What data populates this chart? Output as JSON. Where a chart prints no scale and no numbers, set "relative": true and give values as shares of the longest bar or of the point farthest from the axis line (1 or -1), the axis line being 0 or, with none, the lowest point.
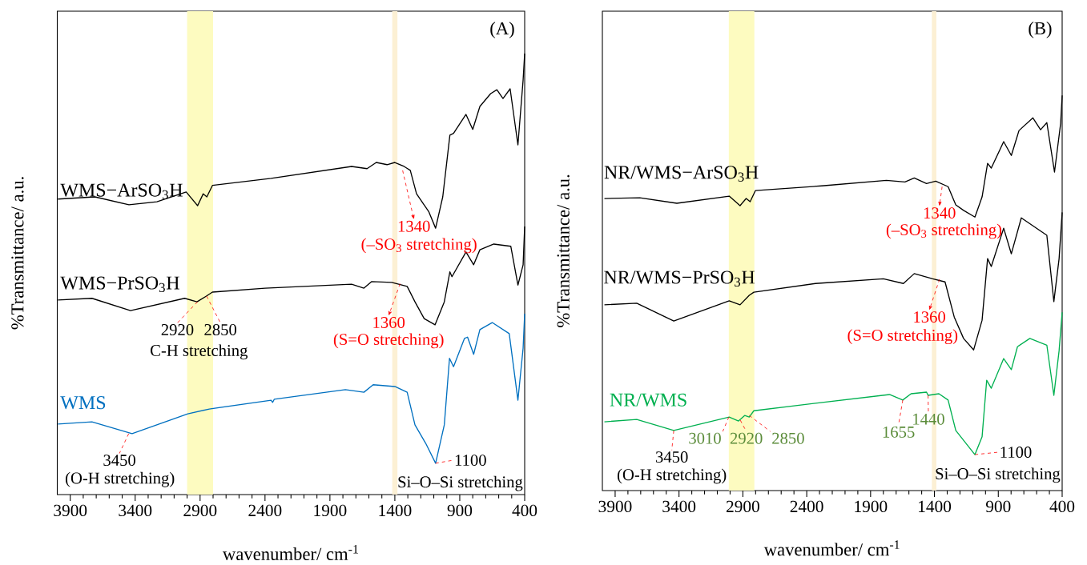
{
  "chart_data": [
    {
      "type": "line",
      "title": "(A)",
      "xlabel": "wavenumber/ cm$^{-1}$",
      "ylabel": "%Transmittance/ a.u.",
      "relative": true,
      "xlim": [
        4000,
        400
      ],
      "xticks": [
        3900,
        3400,
        2900,
        2400,
        1900,
        1400,
        900,
        400
      ],
      "series": [
        {
          "name": "WMS−ArSO$_{3}$H",
          "color": "#000000",
          "x": [
            3995,
            3710,
            3448,
            3233,
            3007,
            2919,
            2876,
            2848,
            2805,
            2353,
            1733,
            1614,
            1543,
            1460,
            1400,
            1329,
            1281,
            1233,
            1138,
            1086,
            1031,
            976,
            948,
            852,
            800,
            745,
            662,
            614,
            567,
            512,
            452,
            412,
            400
          ],
          "values": [
            0.67,
            0.675,
            0.657,
            0.664,
            0.686,
            0.655,
            0.682,
            0.675,
            0.701,
            0.717,
            0.744,
            0.739,
            0.753,
            0.748,
            0.753,
            0.744,
            0.735,
            0.682,
            0.641,
            0.604,
            0.675,
            0.815,
            0.819,
            0.862,
            0.828,
            0.88,
            0.909,
            0.918,
            0.898,
            0.92,
            0.793,
            0.94,
            1.0
          ]
        },
        {
          "name": "WMS−PrSO$_{3}$H",
          "color": "#000000",
          "x": [
            3995,
            3733,
            3436,
            3019,
            2924,
            2852,
            2805,
            2400,
            1733,
            1638,
            1578,
            1424,
            1305,
            1245,
            1174,
            1090,
            1019,
            976,
            960,
            852,
            793,
            745,
            638,
            507,
            452,
            412,
            400
          ],
          "values": [
            0.441,
            0.445,
            0.417,
            0.445,
            0.437,
            0.45,
            0.459,
            0.468,
            0.477,
            0.468,
            0.483,
            0.481,
            0.472,
            0.437,
            0.399,
            0.385,
            0.437,
            0.505,
            0.494,
            0.55,
            0.521,
            0.555,
            0.568,
            0.563,
            0.475,
            0.521,
            0.608
          ]
        },
        {
          "name": "WMS",
          "color": "#0070c0",
          "x": [
            3995,
            3733,
            3424,
            2995,
            2829,
            2353,
            2341,
            2329,
            1781,
            1638,
            1567,
            1400,
            1305,
            1245,
            1162,
            1086,
            1019,
            979,
            948,
            864,
            840,
            793,
            745,
            650,
            519,
            452,
            412,
            400
          ],
          "values": [
            0.16,
            0.165,
            0.138,
            0.183,
            0.194,
            0.214,
            0.209,
            0.216,
            0.238,
            0.232,
            0.249,
            0.245,
            0.232,
            0.158,
            0.116,
            0.071,
            0.158,
            0.309,
            0.29,
            0.354,
            0.357,
            0.318,
            0.374,
            0.39,
            0.365,
            0.214,
            0.332,
            0.41
          ]
        }
      ],
      "bands": [
        {
          "axis": "x",
          "from": 3000,
          "to": 2800,
          "color": "#fdfbc0"
        },
        {
          "axis": "x",
          "from": 1420,
          "to": 1380,
          "color": "#fcf0d4"
        }
      ],
      "annotations": [
        {
          "text": "1340",
          "x": 1340,
          "y": 0.735
        },
        "(–SO$_{3}$ stretching)",
        {
          "text": "1360",
          "x": 1360,
          "y": 0.478
        },
        "(S=O stretching)",
        {
          "text": "2920",
          "x": 2920,
          "y": 0.437
        },
        {
          "text": "2850",
          "x": 2850,
          "y": 0.45
        },
        "C-H stretching",
        {
          "text": "3450",
          "x": 3450,
          "y": 0.138
        },
        "(O-H stretching)",
        {
          "text": "1100",
          "x": 1086,
          "y": 0.071
        },
        "Si–O–Si stretching"
      ]
    },
    {
      "type": "line",
      "title": "(B)",
      "xlabel": "wavenumber/ cm$^{-1}$",
      "ylabel": "%Transmittance/ a.u.",
      "relative": true,
      "xlim": [
        4000,
        400
      ],
      "xticks": [
        3900,
        3400,
        2900,
        2400,
        1900,
        1400,
        900,
        400
      ],
      "series": [
        {
          "name": "NR/WMS−ArSO$_{3}$H",
          "color": "#000000",
          "x": [
            3984,
            3707,
            3417,
            3007,
            2922,
            2874,
            2843,
            2802,
            2283,
            1776,
            1631,
            1558,
            1462,
            1390,
            1293,
            1233,
            1172,
            1083,
            1027,
            984,
            955,
            858,
            798,
            738,
            629,
            569,
            520,
            460,
            412,
            400
          ],
          "values": [
            0.739,
            0.741,
            0.727,
            0.745,
            0.721,
            0.739,
            0.731,
            0.759,
            0.771,
            0.785,
            0.781,
            0.791,
            0.777,
            0.783,
            0.769,
            0.723,
            0.709,
            0.692,
            0.743,
            0.828,
            0.816,
            0.883,
            0.848,
            0.911,
            0.943,
            0.913,
            0.931,
            0.806,
            0.929,
            1.0
          ]
        },
        {
          "name": "NR/WMS−PrSO$_{3}$H",
          "color": "#000000",
          "x": [
            3984,
            3731,
            3441,
            3007,
            2922,
            2850,
            2814,
            2331,
            1800,
            1643,
            1558,
            1414,
            1317,
            1245,
            1172,
            1093,
            1027,
            984,
            955,
            858,
            798,
            720,
            520,
            465,
            424,
            400
          ],
          "values": [
            0.47,
            0.474,
            0.429,
            0.48,
            0.47,
            0.494,
            0.502,
            0.524,
            0.536,
            0.524,
            0.549,
            0.536,
            0.528,
            0.439,
            0.385,
            0.356,
            0.431,
            0.587,
            0.567,
            0.664,
            0.599,
            0.69,
            0.646,
            0.478,
            0.587,
            0.704
          ]
        },
        {
          "name": "NR/WMS",
          "color": "#00b050",
          "x": [
            3984,
            3731,
            3441,
            3007,
            2934,
            2886,
            2850,
            2814,
            2331,
            1752,
            1648,
            1583,
            1462,
            1450,
            1365,
            1293,
            1233,
            1083,
            1027,
            991,
            955,
            858,
            798,
            750,
            653,
            520,
            465,
            424,
            400
          ],
          "values": [
            0.174,
            0.18,
            0.152,
            0.186,
            0.176,
            0.19,
            0.186,
            0.202,
            0.221,
            0.243,
            0.229,
            0.245,
            0.249,
            0.241,
            0.245,
            0.229,
            0.152,
            0.091,
            0.136,
            0.279,
            0.259,
            0.334,
            0.306,
            0.364,
            0.385,
            0.368,
            0.241,
            0.354,
            0.451
          ]
        }
      ],
      "bands": [
        {
          "axis": "x",
          "from": 3010,
          "to": 2810,
          "color": "#fdfbc0"
        },
        {
          "axis": "x",
          "from": 1420,
          "to": 1385,
          "color": "#fcf0d4"
        }
      ],
      "annotations": [
        {
          "text": "1340",
          "x": 1340,
          "y": 0.769
        },
        "(–SO$_{3}$ stretching)",
        {
          "text": "1360",
          "x": 1360,
          "y": 0.535
        },
        "(S=O stretching)",
        {
          "text": "3010",
          "x": 3010,
          "y": 0.186
        },
        {
          "text": "2920",
          "x": 2920,
          "y": 0.178
        },
        {
          "text": "2850",
          "x": 2850,
          "y": 0.19
        },
        {
          "text": "1655",
          "x": 1648,
          "y": 0.229
        },
        {
          "text": "1440",
          "x": 1450,
          "y": 0.241
        },
        {
          "text": "3450",
          "x": 3441,
          "y": 0.152
        },
        "(O-H stretching)",
        {
          "text": "1100",
          "x": 1083,
          "y": 0.091
        },
        "Si–O–Si stretching"
      ]
    }
  ]
}
